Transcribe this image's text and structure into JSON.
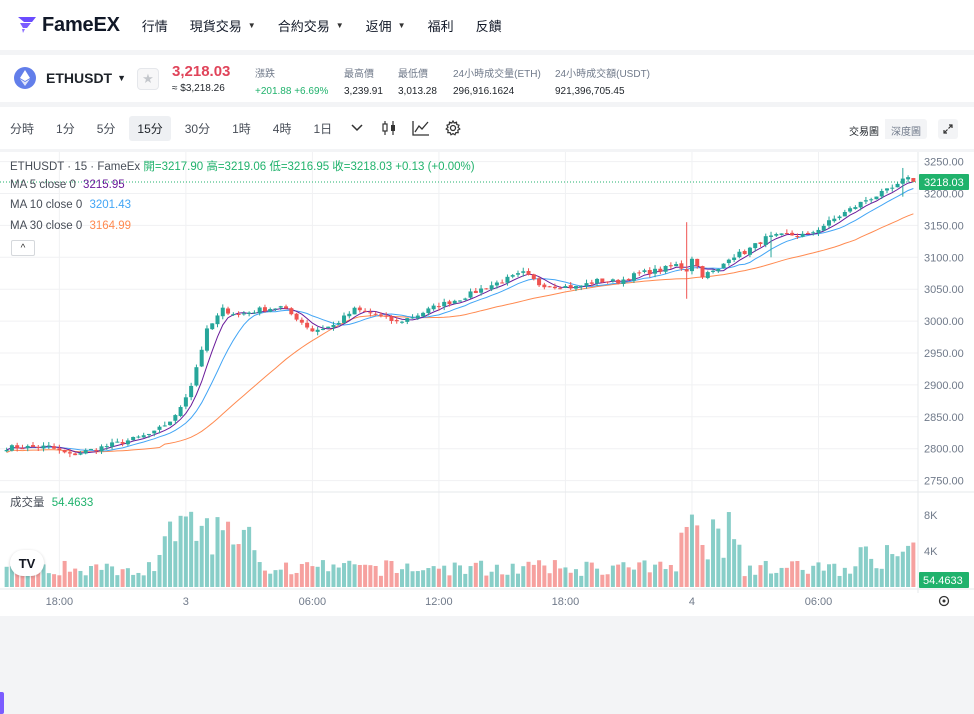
{
  "nav": {
    "logo": "FameEX",
    "items": [
      {
        "label": "行情",
        "dropdown": false
      },
      {
        "label": "現貨交易",
        "dropdown": true
      },
      {
        "label": "合約交易",
        "dropdown": true
      },
      {
        "label": "返佣",
        "dropdown": true
      },
      {
        "label": "福利",
        "dropdown": false
      },
      {
        "label": "反饋",
        "dropdown": false
      }
    ]
  },
  "ticker": {
    "pair": "ETHUSDT",
    "price": "3,218.03",
    "price_usd": "≈ $3,218.26",
    "stats": [
      {
        "label": "漲跌",
        "value": "+201.88 +6.69%",
        "green": true
      },
      {
        "label": "最高價",
        "value": "3,239.91",
        "green": false
      },
      {
        "label": "最低價",
        "value": "3,013.28",
        "green": false
      },
      {
        "label": "24小時成交量(ETH)",
        "value": "296,916.1624",
        "green": false
      },
      {
        "label": "24小時成交額(USDT)",
        "value": "921,396,705.45",
        "green": false
      }
    ]
  },
  "toolbar": {
    "timeframes": [
      "分時",
      "1分",
      "5分",
      "15分",
      "30分",
      "1時",
      "4時",
      "1日"
    ],
    "active_timeframe": "15分",
    "view_trade": "交易圖",
    "view_depth": "深度圖"
  },
  "legend": {
    "title": "ETHUSDT · 15 · FameEx",
    "ohlc": "開=3217.90 高=3219.06 低=3216.95 收=3218.03 +0.13 (+0.00%)",
    "ma5_label": "MA 5 close 0",
    "ma5_value": "3215.95",
    "ma10_label": "MA 10 close 0",
    "ma10_value": "3201.43",
    "ma30_label": "MA 30 close 0",
    "ma30_value": "3164.99",
    "volume_label": "成交量",
    "volume_value": "54.4633"
  },
  "colors": {
    "up": "#26a69a",
    "down": "#ef5350",
    "ma5": "#6a1b9a",
    "ma10": "#42a5f5",
    "ma30": "#ff8a50",
    "price_tag": "#20b26c"
  },
  "chart_data": {
    "type": "candlestick",
    "title": "ETHUSDT · 15 · FameEx",
    "interval": "15m",
    "price_axis_ticks": [
      3250,
      3200,
      3150,
      3100,
      3050,
      3000,
      2950,
      2900,
      2850,
      2800,
      2750
    ],
    "price_axis_labels": [
      "3250.00",
      "3200.00",
      "3150.00",
      "3100.00",
      "3050.00",
      "3000.00",
      "2950.00",
      "2900.00",
      "2850.00",
      "2800.00",
      "2750.00"
    ],
    "price_range": [
      2740,
      3265
    ],
    "last_price": 3218.03,
    "last_price_label": "3218.03",
    "volume_axis_ticks": [
      8000,
      4000
    ],
    "volume_axis_labels": [
      "8K",
      "4K"
    ],
    "volume_range": [
      0,
      10000
    ],
    "last_volume_label": "54.4633",
    "time_labels": [
      {
        "label": "18:00",
        "index": 10
      },
      {
        "label": "3",
        "index": 34
      },
      {
        "label": "06:00",
        "index": 58
      },
      {
        "label": "12:00",
        "index": 82
      },
      {
        "label": "18:00",
        "index": 106
      },
      {
        "label": "4",
        "index": 130
      },
      {
        "label": "06:00",
        "index": 154
      }
    ],
    "close_path": [
      [
        0,
        2802
      ],
      [
        8,
        2803
      ],
      [
        12,
        2790
      ],
      [
        16,
        2798
      ],
      [
        24,
        2815
      ],
      [
        28,
        2825
      ],
      [
        32,
        2850
      ],
      [
        35,
        2900
      ],
      [
        38,
        2985
      ],
      [
        41,
        3018
      ],
      [
        44,
        3010
      ],
      [
        48,
        3018
      ],
      [
        52,
        3022
      ],
      [
        55,
        3005
      ],
      [
        58,
        2985
      ],
      [
        62,
        2993
      ],
      [
        66,
        3018
      ],
      [
        70,
        3010
      ],
      [
        74,
        2998
      ],
      [
        78,
        3010
      ],
      [
        82,
        3025
      ],
      [
        86,
        3035
      ],
      [
        90,
        3050
      ],
      [
        94,
        3063
      ],
      [
        98,
        3075
      ],
      [
        101,
        3058
      ],
      [
        104,
        3055
      ],
      [
        108,
        3053
      ],
      [
        112,
        3063
      ],
      [
        116,
        3062
      ],
      [
        120,
        3075
      ],
      [
        124,
        3080
      ],
      [
        127,
        3088
      ],
      [
        129,
        3080
      ],
      [
        130,
        3100
      ],
      [
        132,
        3072
      ],
      [
        135,
        3080
      ],
      [
        137,
        3100
      ],
      [
        140,
        3108
      ],
      [
        144,
        3130
      ],
      [
        148,
        3135
      ],
      [
        152,
        3135
      ],
      [
        156,
        3155
      ],
      [
        160,
        3175
      ],
      [
        163,
        3190
      ],
      [
        166,
        3200
      ],
      [
        169,
        3212
      ],
      [
        171,
        3228
      ],
      [
        172,
        3218
      ]
    ],
    "wick_events": [
      {
        "index": 129,
        "high": 3155,
        "low": 3035
      },
      {
        "index": 145,
        "high": 3140,
        "low": 3100
      },
      {
        "index": 170,
        "high": 3240,
        "low": 3195
      }
    ]
  }
}
